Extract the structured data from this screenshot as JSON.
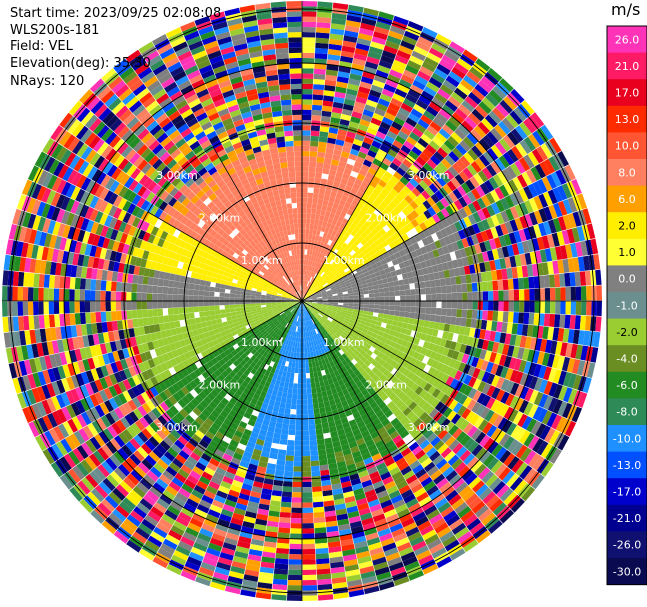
{
  "header": {
    "start_time": "Start time: 2023/09/25 02:08:08",
    "instrument": "WLS200s-181",
    "field": "Field: VEL",
    "elevation": "Elevation(deg): 35.30",
    "nrays": "NRays: 120"
  },
  "range_labels": [
    "1.00km",
    "2.00km",
    "3.00km"
  ],
  "colorbar": {
    "unit": "m/s",
    "labels": [
      "26.0",
      "21.0",
      "17.0",
      "13.0",
      "10.0",
      "8.0",
      "6.0",
      "2.0",
      "1.0",
      "0.0",
      "-1.0",
      "-2.0",
      "-4.0",
      "-6.0",
      "-8.0",
      "-10.0",
      "-13.0",
      "-17.0",
      "-21.0",
      "-26.0",
      "-30.0"
    ],
    "colors": [
      "#ff33b8",
      "#ff1a66",
      "#e8001e",
      "#ff2b00",
      "#ff5533",
      "#ff8060",
      "#ffa000",
      "#ffee00",
      "#ffff33",
      "#808080",
      "#6b8e8e",
      "#9acd32",
      "#6b8e23",
      "#228b22",
      "#2e8b57",
      "#1e90ff",
      "#0050ff",
      "#0000cd",
      "#000090",
      "#101070",
      "#0a0a50"
    ]
  }
}
